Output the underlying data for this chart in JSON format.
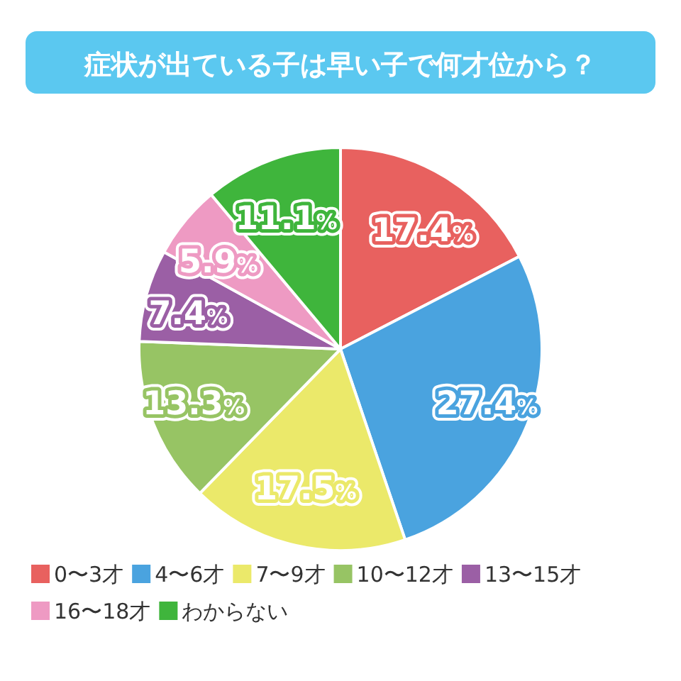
{
  "chart_data": {
    "type": "pie",
    "title": "症状が出ている子は早い子で何才位から？",
    "categories": [
      "0〜3才",
      "4〜6才",
      "7〜9才",
      "10〜12才",
      "13〜15才",
      "16〜18才",
      "わからない"
    ],
    "values": [
      17.4,
      27.4,
      17.5,
      13.3,
      7.4,
      5.9,
      11.1
    ],
    "colors": [
      "#e8615f",
      "#4aa3df",
      "#ebe96a",
      "#97c464",
      "#9b5fa5",
      "#ee9ac3",
      "#3fb53c"
    ],
    "value_labels": [
      "17.4%",
      "27.4%",
      "17.5%",
      "13.3%",
      "7.4%",
      "5.9%",
      "11.1%"
    ],
    "legend": "bottom"
  }
}
